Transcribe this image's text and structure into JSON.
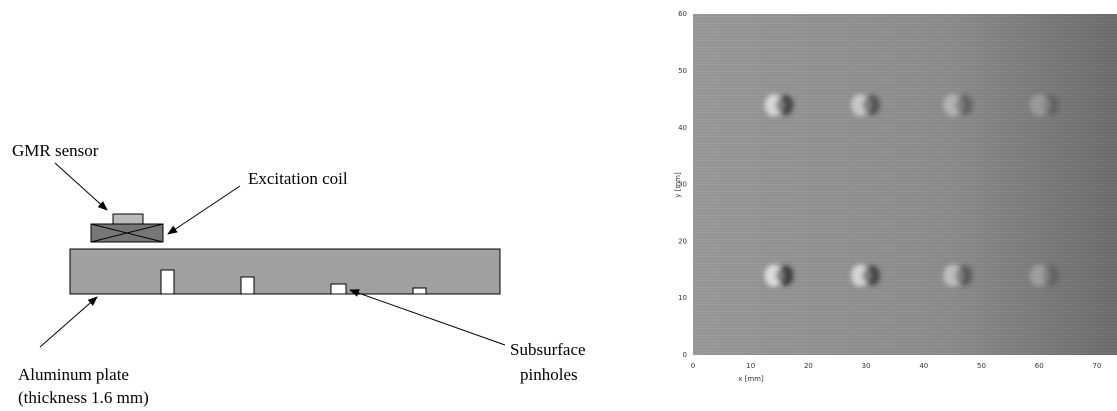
{
  "diagram": {
    "sensor_label": "GMR sensor",
    "coil_label": "Excitation coil",
    "plate_label": "Aluminum plate",
    "plate_note": "(thickness 1.6 mm)",
    "pinholes_label_1": "Subsurface",
    "pinholes_label_2": "pinholes"
  },
  "scan": {
    "x_label": "x [mm]",
    "y_label": "y [mm]",
    "x_ticks": [
      0,
      10,
      20,
      30,
      40,
      50,
      60,
      70
    ],
    "y_ticks": [
      0,
      10,
      20,
      30,
      40,
      50,
      60
    ]
  }
}
